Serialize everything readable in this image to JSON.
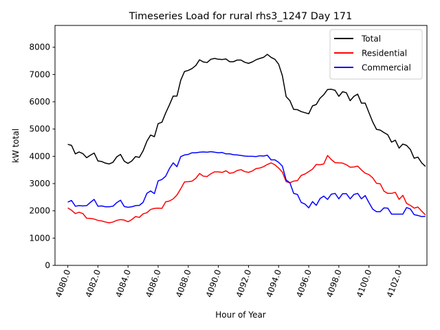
{
  "chart_data": {
    "type": "line",
    "title": "Timeseries Load for rural rhs3_1247  Day 171",
    "xlabel": "Hour of Year",
    "ylabel": "kW total",
    "xlim": [
      4079.15,
      4103.85
    ],
    "ylim": [
      0,
      8800
    ],
    "x_ticks": [
      "4080.0",
      "4082.0",
      "4084.0",
      "4086.0",
      "4088.0",
      "4090.0",
      "4092.0",
      "4094.0",
      "4096.0",
      "4098.0",
      "4100.0",
      "4102.0"
    ],
    "y_ticks": [
      "0",
      "1000",
      "2000",
      "3000",
      "4000",
      "5000",
      "6000",
      "7000",
      "8000"
    ],
    "x_start": 4080.0,
    "x_step": 0.25,
    "legend_position": "upper-right",
    "series": [
      {
        "name": "Total",
        "color": "#000000",
        "values": [
          4440,
          4400,
          4090,
          4160,
          4100,
          3950,
          4040,
          4120,
          3830,
          3810,
          3750,
          3720,
          3780,
          3980,
          4070,
          3820,
          3740,
          3830,
          3990,
          3960,
          4200,
          4550,
          4780,
          4720,
          5200,
          5250,
          5590,
          5890,
          6210,
          6210,
          6790,
          7110,
          7150,
          7220,
          7330,
          7540,
          7460,
          7440,
          7560,
          7590,
          7560,
          7550,
          7570,
          7470,
          7470,
          7530,
          7530,
          7450,
          7410,
          7460,
          7540,
          7590,
          7630,
          7740,
          7630,
          7560,
          7380,
          6960,
          6190,
          6040,
          5720,
          5710,
          5640,
          5600,
          5560,
          5850,
          5900,
          6130,
          6260,
          6450,
          6460,
          6420,
          6200,
          6370,
          6330,
          6040,
          6200,
          6280,
          5950,
          5950,
          5600,
          5260,
          4990,
          4960,
          4870,
          4790,
          4520,
          4590,
          4300,
          4450,
          4400,
          4250,
          3930,
          3970,
          3760,
          3630
        ]
      },
      {
        "name": "Residential",
        "color": "#ff0000",
        "values": [
          2110,
          2020,
          1900,
          1950,
          1900,
          1730,
          1720,
          1700,
          1650,
          1630,
          1590,
          1560,
          1590,
          1650,
          1680,
          1660,
          1600,
          1680,
          1790,
          1760,
          1890,
          1930,
          2050,
          2090,
          2100,
          2090,
          2330,
          2360,
          2440,
          2580,
          2810,
          3060,
          3070,
          3090,
          3190,
          3370,
          3270,
          3260,
          3360,
          3430,
          3430,
          3410,
          3470,
          3380,
          3400,
          3480,
          3510,
          3440,
          3410,
          3460,
          3550,
          3570,
          3620,
          3700,
          3760,
          3690,
          3570,
          3420,
          3070,
          3030,
          3090,
          3110,
          3300,
          3350,
          3440,
          3530,
          3700,
          3690,
          3720,
          4030,
          3880,
          3770,
          3760,
          3750,
          3690,
          3600,
          3610,
          3640,
          3500,
          3380,
          3330,
          3210,
          3010,
          2990,
          2720,
          2640,
          2640,
          2680,
          2420,
          2570,
          2270,
          2200,
          2100,
          2140,
          1990,
          1850
        ]
      },
      {
        "name": "Commercial",
        "color": "#0000ff",
        "values": [
          2320,
          2380,
          2170,
          2190,
          2180,
          2190,
          2310,
          2420,
          2170,
          2180,
          2150,
          2150,
          2170,
          2300,
          2390,
          2160,
          2130,
          2150,
          2190,
          2200,
          2310,
          2640,
          2730,
          2630,
          3100,
          3150,
          3270,
          3550,
          3760,
          3620,
          3990,
          4050,
          4070,
          4130,
          4130,
          4150,
          4160,
          4150,
          4170,
          4150,
          4130,
          4140,
          4090,
          4090,
          4060,
          4050,
          4030,
          4010,
          4000,
          4000,
          3990,
          4020,
          4010,
          4040,
          3870,
          3870,
          3780,
          3640,
          3130,
          3030,
          2640,
          2600,
          2310,
          2250,
          2110,
          2340,
          2200,
          2450,
          2540,
          2420,
          2610,
          2640,
          2440,
          2630,
          2630,
          2440,
          2600,
          2640,
          2440,
          2560,
          2300,
          2060,
          1970,
          1970,
          2110,
          2100,
          1880,
          1880,
          1880,
          1880,
          2120,
          2070,
          1860,
          1830,
          1790,
          1800
        ]
      }
    ]
  }
}
